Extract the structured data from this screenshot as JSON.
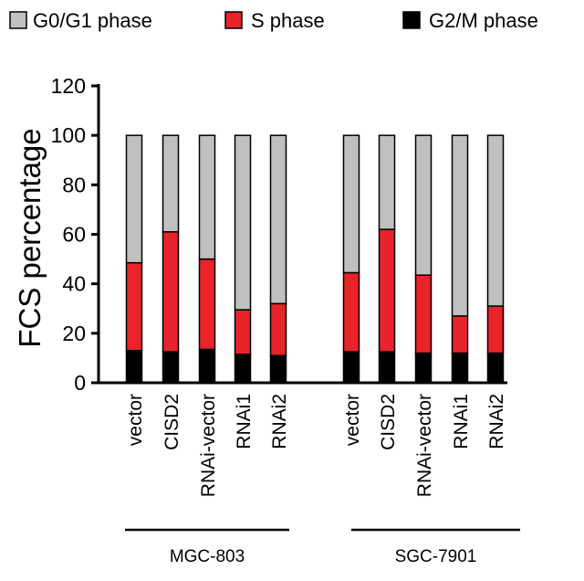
{
  "chart_data": {
    "type": "bar",
    "stacked": true,
    "ylabel": "FCS percentage",
    "ylim": [
      0,
      120
    ],
    "yticks": [
      0,
      20,
      40,
      60,
      80,
      100,
      120
    ],
    "categories": [
      "vector",
      "CISD2",
      "RNAi-vector",
      "RNAi1",
      "RNAi2",
      "vector",
      "CISD2",
      "RNAi-vector",
      "RNAi1",
      "RNAi2"
    ],
    "groups": [
      {
        "label": "MGC-803",
        "categories": [
          0,
          1,
          2,
          3,
          4
        ]
      },
      {
        "label": "SGC-7901",
        "categories": [
          5,
          6,
          7,
          8,
          9
        ]
      }
    ],
    "series": [
      {
        "name": "G2/M phase",
        "color": "#000000",
        "values": [
          13,
          12.5,
          13.5,
          11.5,
          11,
          12.5,
          12.5,
          12,
          12,
          12
        ]
      },
      {
        "name": "S phase",
        "color": "#e8232a",
        "values": [
          35.5,
          48.5,
          36.5,
          18,
          21,
          32,
          49.5,
          31.5,
          15,
          19
        ]
      },
      {
        "name": "G0/G1 phase",
        "color": "#c0c0c0",
        "values": [
          51.5,
          39,
          50,
          70.5,
          68,
          55.5,
          38,
          56.5,
          73,
          69
        ]
      }
    ],
    "legend": {
      "position": "top",
      "order": [
        "G0/G1 phase",
        "S phase",
        "G2/M phase"
      ]
    },
    "grid": false
  }
}
